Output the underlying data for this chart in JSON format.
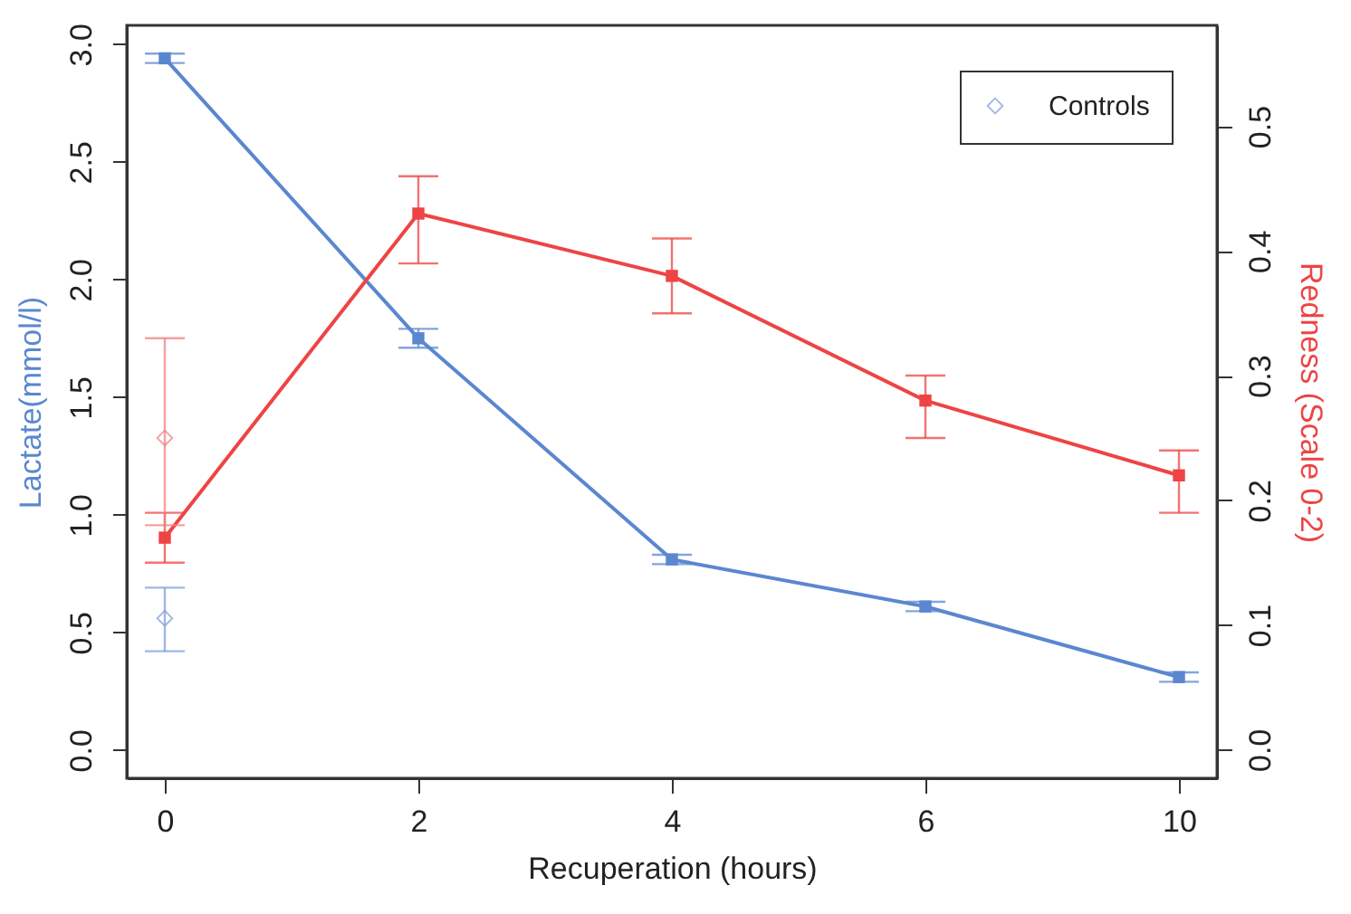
{
  "chart_data": {
    "type": "line",
    "xlabel": "Recuperation (hours)",
    "ylabel": "Lactate(mmol/l)",
    "y2label": "Redness (Scale 0-2)",
    "categories": [
      "0",
      "2",
      "4",
      "6",
      "10"
    ],
    "ylim": [
      -0.12,
      3.08
    ],
    "yticks": [
      {
        "value": 0,
        "label": "0.0"
      },
      {
        "value": 0.5,
        "label": "0.5"
      },
      {
        "value": 1,
        "label": "1.0"
      },
      {
        "value": 1.5,
        "label": "1.5"
      },
      {
        "value": 2,
        "label": "2.0"
      },
      {
        "value": 2.5,
        "label": "2.5"
      },
      {
        "value": 3,
        "label": "3.0"
      }
    ],
    "y2lim": [
      -0.023,
      0.581
    ],
    "y2ticks": [
      {
        "value": 0,
        "label": "0.0"
      },
      {
        "value": 0.1,
        "label": "0.1"
      },
      {
        "value": 0.2,
        "label": "0.2"
      },
      {
        "value": 0.3,
        "label": "0.3"
      },
      {
        "value": 0.4,
        "label": "0.4"
      },
      {
        "value": 0.5,
        "label": "0.5"
      }
    ],
    "grid": false,
    "legend": "top right",
    "line_style": "solid",
    "series": [
      {
        "color": "#5b87d0",
        "marker": "square",
        "values": [
          2.94,
          1.75,
          0.81,
          0.61,
          0.31
        ],
        "errors": [
          0.02,
          0.04,
          0.02,
          0.02,
          0.02
        ]
      },
      {
        "axis": "y2",
        "color": "#ee4444",
        "marker": "square",
        "values": [
          0.17,
          0.43,
          0.38,
          0.28,
          0.22
        ],
        "errors": [
          [
            0.15,
            0.19
          ],
          [
            0.39,
            0.46
          ],
          [
            0.35,
            0.41
          ],
          [
            0.25,
            0.3
          ],
          [
            0.19,
            0.24
          ]
        ]
      },
      {
        "type": "scatter",
        "name": "Controls",
        "color": "#7f9fd8",
        "marker": "diamond",
        "x": [
          "0"
        ],
        "values": [
          0.56
        ],
        "errors": [
          [
            0.42,
            0.69
          ]
        ]
      },
      {
        "type": "scatter",
        "axis": "y2",
        "color": "#f08080",
        "marker": "diamond",
        "x": [
          "0"
        ],
        "values": [
          0.25
        ],
        "errors": [
          [
            0.18,
            0.33
          ]
        ]
      }
    ]
  }
}
